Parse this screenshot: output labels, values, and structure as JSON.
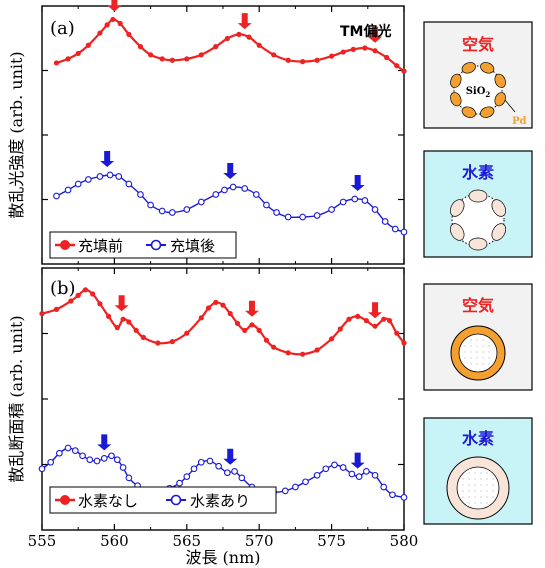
{
  "figure": {
    "polarization_label": "TM偏光",
    "x_label": "波長 (nm)",
    "x_ticks": [
      "555",
      "560",
      "565",
      "570",
      "575",
      "580"
    ],
    "xlim": [
      555,
      580
    ]
  },
  "colors": {
    "red": "#ee2222",
    "blue": "#1a1ad6",
    "inset_air_bg": "#f2f2f2",
    "inset_h2_bg": "#c8f4f8",
    "pd_particle": "#f4a030",
    "pd_particle_h2": "#f8e4d8"
  },
  "chart_data": [
    {
      "type": "line",
      "panel_label": "(a)",
      "ylabel": "散乱光強度 (arb. unit)",
      "xlim": [
        555,
        580
      ],
      "ylim": [
        0,
        1
      ],
      "markers_on_peaks": "down-arrow",
      "series": [
        {
          "name": "充填前",
          "marker": "filled-circle",
          "color": "#ee2222",
          "x": [
            556.0,
            556.8,
            557.5,
            558.2,
            559.0,
            559.5,
            559.9,
            560.4,
            561.0,
            561.8,
            562.5,
            563.3,
            564.0,
            565.0,
            566.0,
            567.0,
            567.8,
            568.6,
            569.3,
            570.0,
            571.0,
            572.0,
            573.0,
            574.0,
            575.0,
            575.8,
            576.5,
            577.3,
            578.0,
            578.8,
            579.5,
            580.0
          ],
          "y": [
            0.64,
            0.67,
            0.71,
            0.77,
            0.86,
            0.92,
            0.96,
            0.93,
            0.85,
            0.76,
            0.7,
            0.67,
            0.66,
            0.67,
            0.7,
            0.76,
            0.82,
            0.85,
            0.83,
            0.77,
            0.7,
            0.66,
            0.65,
            0.66,
            0.69,
            0.72,
            0.74,
            0.75,
            0.73,
            0.68,
            0.62,
            0.58
          ]
        },
        {
          "name": "充填後",
          "marker": "open-circle",
          "color": "#1a1ad6",
          "x": [
            556.0,
            556.8,
            557.5,
            558.2,
            559.0,
            559.7,
            560.3,
            561.0,
            561.8,
            562.5,
            563.3,
            564.0,
            565.0,
            566.0,
            567.0,
            567.6,
            568.2,
            569.0,
            569.8,
            570.5,
            571.2,
            572.0,
            573.0,
            574.0,
            575.0,
            575.8,
            576.6,
            577.3,
            578.0,
            578.7,
            579.4,
            580.0
          ],
          "y": [
            0.36,
            0.4,
            0.44,
            0.47,
            0.49,
            0.5,
            0.49,
            0.44,
            0.37,
            0.3,
            0.26,
            0.25,
            0.27,
            0.32,
            0.37,
            0.4,
            0.42,
            0.41,
            0.37,
            0.3,
            0.25,
            0.22,
            0.22,
            0.23,
            0.27,
            0.32,
            0.34,
            0.33,
            0.27,
            0.19,
            0.14,
            0.12
          ]
        }
      ],
      "peak_arrows": [
        {
          "series": "充填前",
          "x": 560.0
        },
        {
          "series": "充填前",
          "x": 569.0
        },
        {
          "series": "充填前",
          "x": 578.0
        },
        {
          "series": "充填後",
          "x": 559.5
        },
        {
          "series": "充填後",
          "x": 568.0
        },
        {
          "series": "充填後",
          "x": 576.8
        }
      ]
    },
    {
      "type": "line",
      "panel_label": "(b)",
      "ylabel": "散乱断面積 (arb. unit)",
      "xlim": [
        555,
        580
      ],
      "ylim": [
        0,
        1
      ],
      "markers_on_peaks": "down-arrow",
      "series": [
        {
          "name": "水素なし",
          "marker": "filled-circle",
          "color": "#ee2222",
          "x": [
            555.0,
            556.0,
            557.0,
            557.5,
            558.0,
            558.5,
            559.0,
            559.6,
            560.2,
            560.6,
            561.0,
            561.5,
            562.0,
            563.0,
            564.0,
            565.0,
            566.0,
            566.5,
            567.0,
            567.5,
            568.0,
            568.5,
            569.0,
            569.5,
            570.0,
            570.5,
            571.0,
            572.0,
            573.0,
            574.0,
            575.0,
            575.6,
            576.2,
            576.8,
            577.4,
            578.0,
            578.6,
            579.0,
            579.5,
            580.0
          ],
          "y": [
            0.76,
            0.79,
            0.85,
            0.89,
            0.93,
            0.9,
            0.83,
            0.74,
            0.66,
            0.72,
            0.7,
            0.64,
            0.59,
            0.55,
            0.56,
            0.62,
            0.73,
            0.8,
            0.84,
            0.82,
            0.76,
            0.69,
            0.64,
            0.68,
            0.64,
            0.57,
            0.52,
            0.48,
            0.47,
            0.5,
            0.58,
            0.65,
            0.72,
            0.74,
            0.71,
            0.67,
            0.72,
            0.71,
            0.62,
            0.55
          ]
        },
        {
          "name": "水素あり",
          "marker": "open-circle",
          "color": "#1a1ad6",
          "x": [
            555.0,
            555.6,
            556.2,
            556.8,
            557.3,
            557.8,
            558.3,
            558.8,
            559.3,
            559.8,
            560.2,
            560.6,
            561.0,
            561.6,
            562.3,
            563.0,
            563.8,
            564.5,
            565.0,
            565.5,
            566.0,
            566.6,
            567.2,
            567.8,
            568.3,
            568.8,
            569.5,
            570.3,
            571.0,
            571.8,
            572.5,
            573.2,
            574.0,
            574.6,
            575.2,
            575.8,
            576.4,
            576.9,
            577.4,
            578.0,
            578.6,
            579.2,
            580.0
          ],
          "y": [
            0.24,
            0.29,
            0.36,
            0.4,
            0.38,
            0.34,
            0.31,
            0.3,
            0.32,
            0.34,
            0.31,
            0.25,
            0.17,
            0.11,
            0.07,
            0.07,
            0.09,
            0.13,
            0.18,
            0.24,
            0.29,
            0.3,
            0.26,
            0.21,
            0.22,
            0.17,
            0.1,
            0.07,
            0.06,
            0.07,
            0.1,
            0.14,
            0.19,
            0.24,
            0.27,
            0.25,
            0.2,
            0.18,
            0.22,
            0.19,
            0.1,
            0.04,
            0.02
          ]
        }
      ],
      "peak_arrows": [
        {
          "series": "水素なし",
          "x": 560.5
        },
        {
          "series": "水素なし",
          "x": 569.5
        },
        {
          "series": "水素なし",
          "x": 578.0
        },
        {
          "series": "水素あり",
          "x": 559.3
        },
        {
          "series": "水素あり",
          "x": 568.0
        },
        {
          "series": "水素あり",
          "x": 576.8
        }
      ]
    }
  ],
  "insets": [
    {
      "label": "空気",
      "label_color": "#ee2222",
      "bg": "#f2f2f2",
      "kind": "particles",
      "core_label": "SiO2",
      "shell_label": "Pd"
    },
    {
      "label": "水素",
      "label_color": "#1a1ad6",
      "bg": "#c8f4f8",
      "kind": "particles-expanded"
    },
    {
      "label": "空気",
      "label_color": "#ee2222",
      "bg": "#f2f2f2",
      "kind": "shell"
    },
    {
      "label": "水素",
      "label_color": "#1a1ad6",
      "bg": "#c8f4f8",
      "kind": "shell-expanded"
    }
  ]
}
